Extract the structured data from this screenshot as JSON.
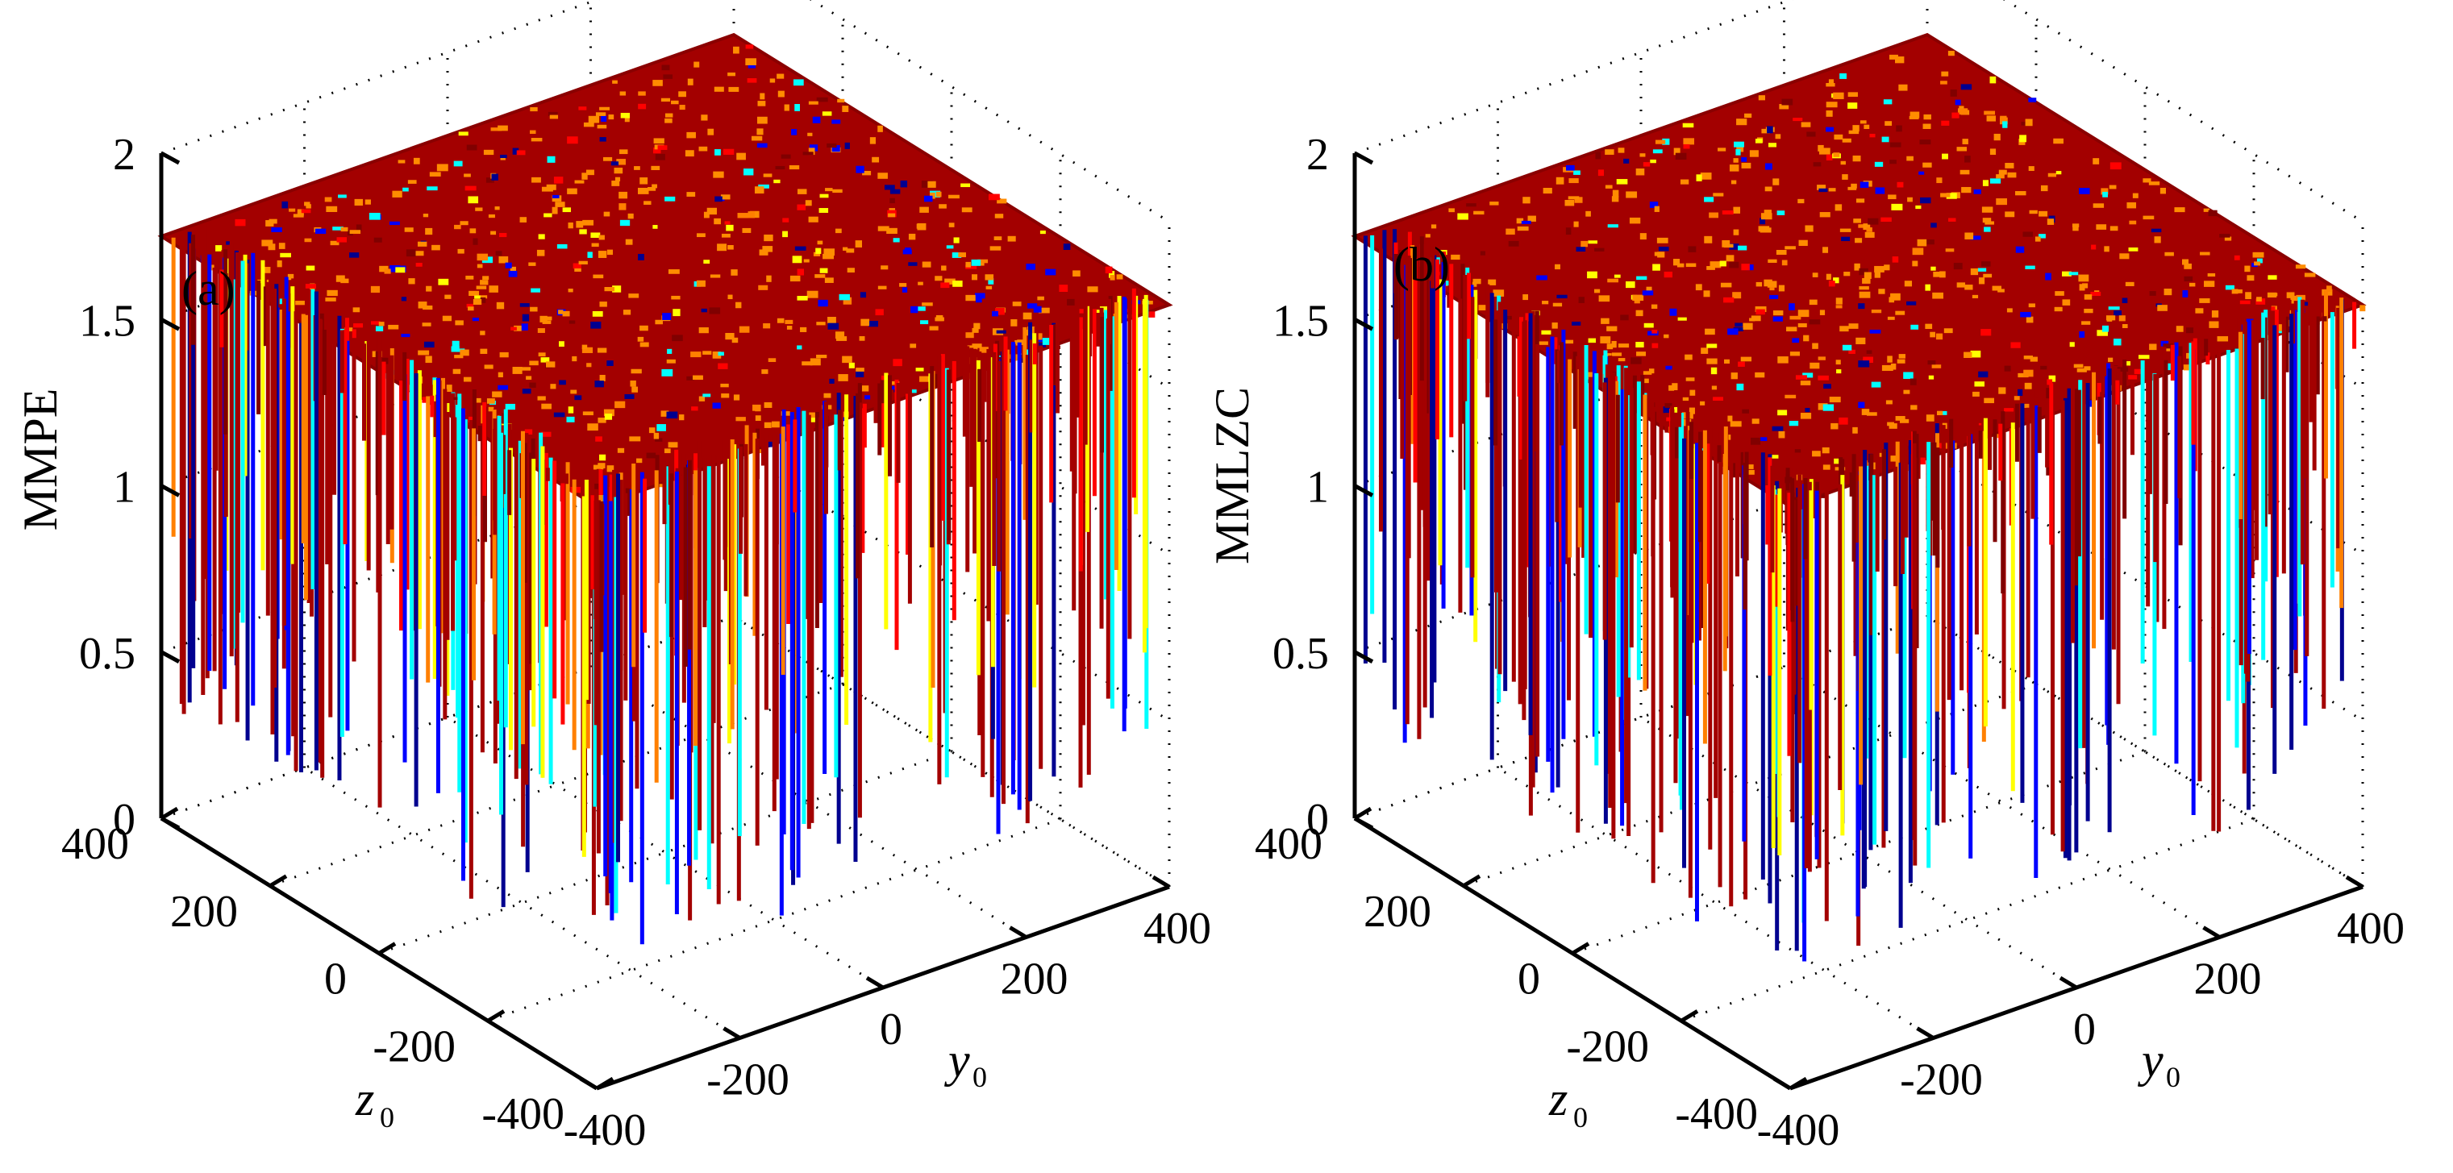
{
  "figure": {
    "description_free": true
  },
  "chart_data": [
    {
      "type": "surface",
      "panel_label": "(a)",
      "zlabel": "MMPE",
      "xlabel": {
        "main": "y",
        "sub": "0"
      },
      "ylabel": {
        "main": "z",
        "sub": "0"
      },
      "xlim": [
        -400,
        400
      ],
      "ylim": [
        -400,
        400
      ],
      "zlim": [
        0,
        2
      ],
      "x_ticks": [
        "-400",
        "-200",
        "0",
        "200",
        "400"
      ],
      "y_ticks": [
        "-400",
        "-200",
        "0",
        "200",
        "400"
      ],
      "z_ticks": [
        "0",
        "0.5",
        "1",
        "1.5",
        "2"
      ],
      "plateau_value": 1.75,
      "min_value": 0.3,
      "colormap": [
        "#00008f",
        "#0000ff",
        "#00ffff",
        "#ffff00",
        "#ff8000",
        "#ff0000",
        "#800000"
      ],
      "grid": true
    },
    {
      "type": "surface",
      "panel_label": "(b)",
      "zlabel": "MMLZC",
      "xlabel": {
        "main": "y",
        "sub": "0"
      },
      "ylabel": {
        "main": "z",
        "sub": "0"
      },
      "xlim": [
        -400,
        400
      ],
      "ylim": [
        -400,
        400
      ],
      "zlim": [
        0,
        2
      ],
      "x_ticks": [
        "-400",
        "-200",
        "0",
        "200",
        "400"
      ],
      "y_ticks": [
        "-400",
        "-200",
        "0",
        "200",
        "400"
      ],
      "z_ticks": [
        "0",
        "0.5",
        "1",
        "1.5",
        "2"
      ],
      "plateau_value": 1.75,
      "min_value": 0.3,
      "colormap": [
        "#00008f",
        "#0000ff",
        "#00ffff",
        "#ffff00",
        "#ff8000",
        "#ff0000",
        "#800000"
      ],
      "grid": true
    }
  ]
}
